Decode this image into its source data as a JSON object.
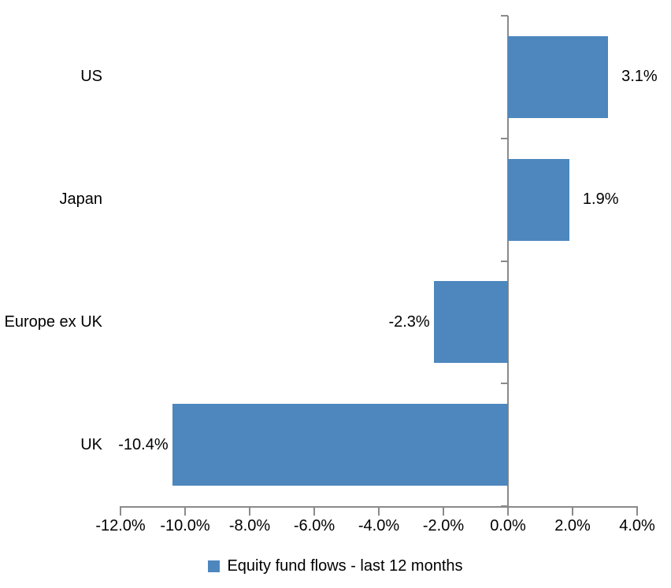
{
  "chart_data": {
    "type": "bar",
    "orientation": "horizontal",
    "title": "",
    "categories": [
      "US",
      "Japan",
      "Europe ex UK",
      "UK"
    ],
    "series": [
      {
        "name": "Equity fund flows - last 12 months",
        "values": [
          3.1,
          1.9,
          -2.3,
          -10.4
        ],
        "value_labels": [
          "3.1%",
          "1.9%",
          "-2.3%",
          "-10.4%"
        ]
      }
    ],
    "xlabel": "",
    "ylabel": "",
    "xlim": [
      -12,
      4
    ],
    "x_tick_values": [
      -12,
      -10,
      -8,
      -6,
      -4,
      -2,
      0,
      2,
      4
    ],
    "x_tick_labels": [
      "-12.0%",
      "-10.0%",
      "-8.0%",
      "-6.0%",
      "-4.0%",
      "-2.0%",
      "0.0%",
      "2.0%",
      "4.0%"
    ],
    "grid": false,
    "legend_position": "bottom",
    "legend_label": "Equity fund flows - last 12 months",
    "colors": {
      "bar": "#4D87BE",
      "axis": "#8A8A8A",
      "text": "#000000",
      "background": "#FFFFFF"
    }
  }
}
